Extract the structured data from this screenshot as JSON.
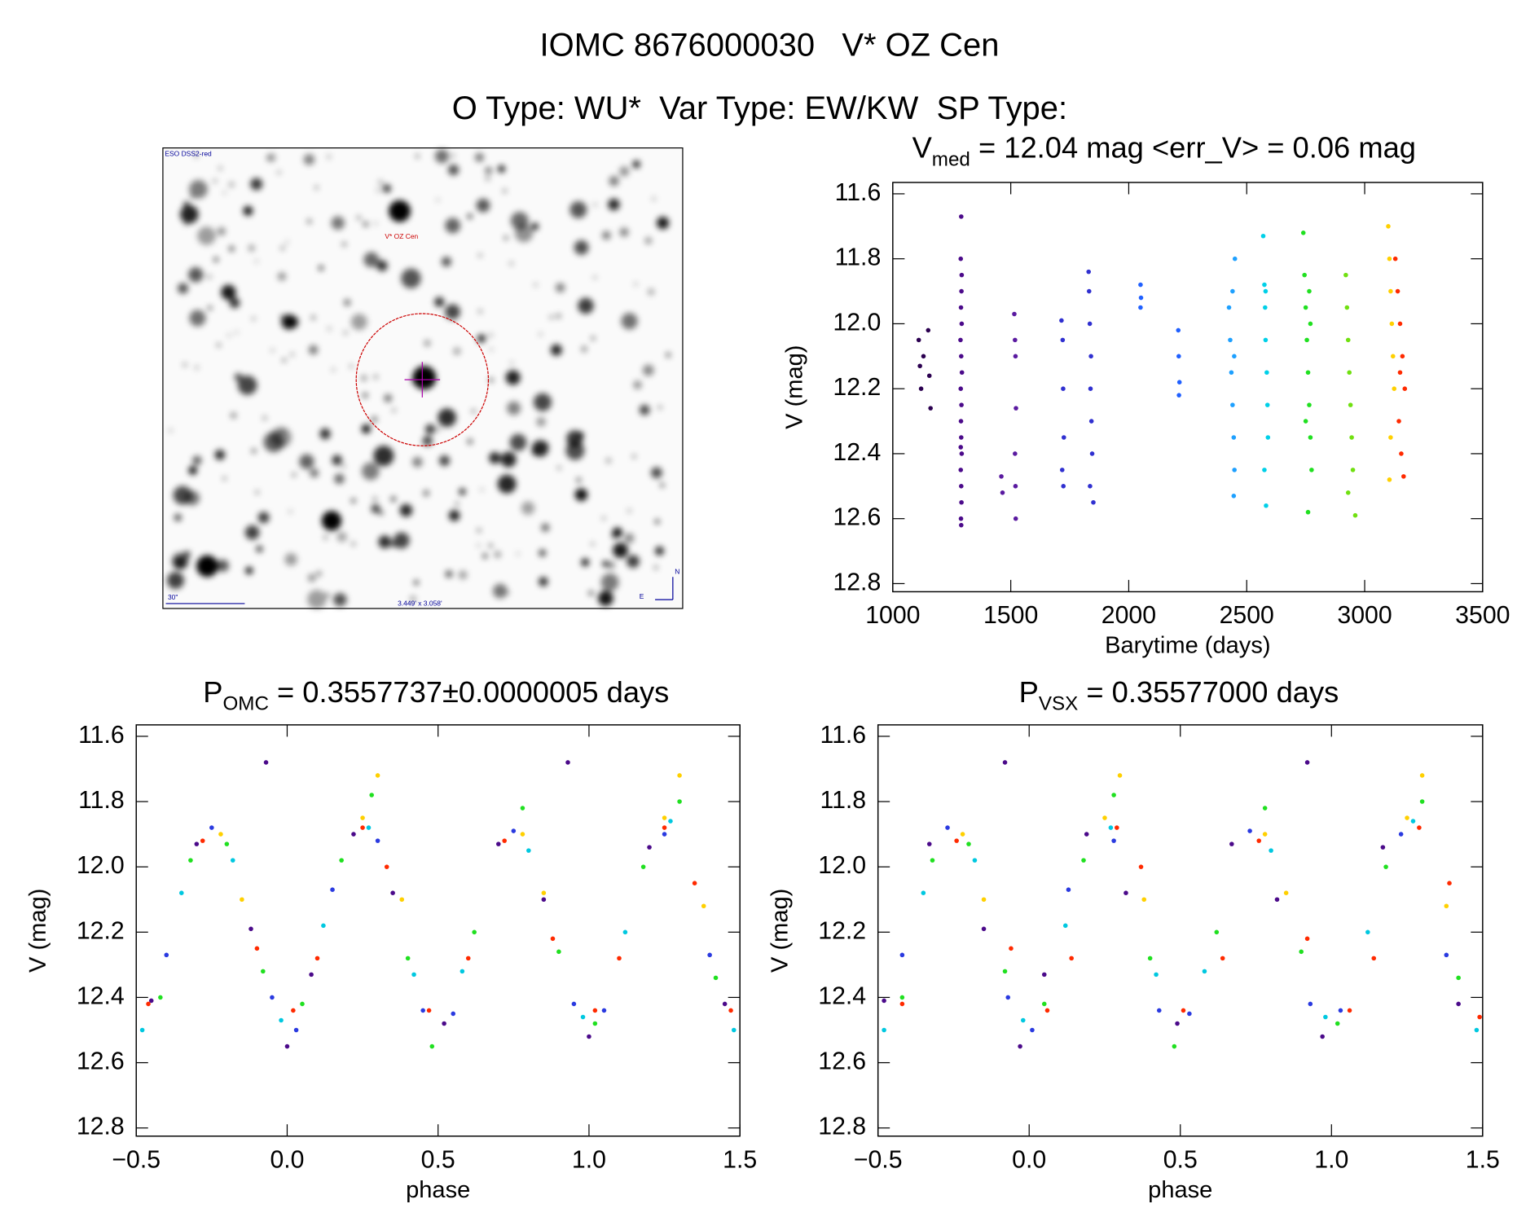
{
  "header": {
    "line1": "IOMC 8676000030   V* OZ Cen",
    "line2": "O Type: WU*  Var Type: EW/KW  SP Type:"
  },
  "finder": {
    "survey": "ESO DSS2-red",
    "target": "V* OZ Cen",
    "scale": "30\"",
    "size": "3.449' x 3.058'",
    "north": "N",
    "east": "E"
  },
  "chart_data": [
    {
      "type": "scatter",
      "title": [
        "V",
        "med",
        " = 12.04 mag <err_V> = 0.06 mag"
      ],
      "xlabel": "Barytime (days)",
      "ylabel": "V (mag)",
      "xlim": [
        1000,
        3500
      ],
      "ylim": [
        12.825,
        11.565
      ],
      "xticks": [
        1000,
        1500,
        2000,
        2500,
        3000,
        3500
      ],
      "yticks": [
        11.6,
        11.8,
        {
          "value": 12,
          "label": "12.0"
        },
        12.2,
        12.4,
        12.6,
        12.8
      ],
      "series": [
        {
          "color": "#2b0050",
          "x": [
            1110,
            1115,
            1120,
            1130,
            1150,
            1155,
            1160
          ],
          "values": [
            12.05,
            12.13,
            12.2,
            12.1,
            12.02,
            12.16,
            12.26
          ]
        },
        {
          "color": "#4b0a8a",
          "x": [
            1290,
            1288,
            1291,
            1289,
            1292,
            1287,
            1290,
            1293,
            1288,
            1291,
            1289,
            1290,
            1292,
            1288,
            1290,
            1291,
            1289,
            1290,
            1292,
            1288
          ],
          "values": [
            11.67,
            11.8,
            11.9,
            11.95,
            12.0,
            12.05,
            12.1,
            12.15,
            12.2,
            12.25,
            12.3,
            12.35,
            12.4,
            12.45,
            12.5,
            12.55,
            12.6,
            12.62,
            11.85,
            12.38
          ]
        },
        {
          "color": "#5a1aa0",
          "x": [
            1460,
            1465,
            1515,
            1518,
            1520,
            1522,
            1518,
            1520,
            1521
          ],
          "values": [
            12.47,
            12.52,
            11.97,
            12.05,
            12.1,
            12.26,
            12.4,
            12.5,
            12.6
          ]
        },
        {
          "color": "#3030d0",
          "x": [
            1715,
            1720,
            1722,
            1725,
            1718,
            1723,
            1830,
            1832,
            1835,
            1840,
            1838,
            1842,
            1845,
            1850,
            1836
          ],
          "values": [
            11.99,
            12.05,
            12.2,
            12.35,
            12.45,
            12.5,
            11.84,
            11.9,
            12.0,
            12.1,
            12.2,
            12.3,
            12.4,
            12.55,
            12.5
          ]
        },
        {
          "color": "#2060ff",
          "x": [
            2050,
            2052,
            2050,
            2210,
            2212,
            2215,
            2213
          ],
          "values": [
            11.88,
            11.92,
            11.95,
            12.02,
            12.1,
            12.18,
            12.22
          ]
        },
        {
          "color": "#1ea0ff",
          "x": [
            2425,
            2430,
            2435,
            2440,
            2445,
            2448,
            2450,
            2440,
            2445,
            2447
          ],
          "values": [
            11.95,
            12.05,
            12.15,
            12.25,
            12.35,
            12.45,
            11.8,
            11.9,
            12.53,
            12.1
          ]
        },
        {
          "color": "#00d0e8",
          "x": [
            2570,
            2575,
            2578,
            2580,
            2585,
            2588,
            2590,
            2575,
            2582,
            2580
          ],
          "values": [
            11.73,
            11.88,
            11.95,
            12.05,
            12.15,
            12.25,
            12.35,
            12.45,
            12.56,
            11.9
          ]
        },
        {
          "color": "#20e020",
          "x": [
            2740,
            2745,
            2750,
            2755,
            2760,
            2765,
            2770,
            2775,
            2760,
            2750,
            2770,
            2765
          ],
          "values": [
            11.72,
            11.85,
            11.95,
            12.05,
            12.15,
            12.25,
            12.35,
            12.45,
            12.58,
            12.3,
            12.0,
            11.9
          ]
        },
        {
          "color": "#70e010",
          "x": [
            2920,
            2925,
            2930,
            2935,
            2940,
            2945,
            2950,
            2960,
            2930
          ],
          "values": [
            11.85,
            11.95,
            12.05,
            12.15,
            12.25,
            12.35,
            12.45,
            12.59,
            12.52
          ]
        },
        {
          "color": "#ffd000",
          "x": [
            3100,
            3105,
            3110,
            3115,
            3120,
            3125,
            3110,
            3105
          ],
          "values": [
            11.7,
            11.8,
            11.9,
            12.0,
            12.1,
            12.2,
            12.35,
            12.48
          ]
        },
        {
          "color": "#ff2a00",
          "x": [
            3130,
            3140,
            3150,
            3160,
            3170,
            3145,
            3155,
            3165,
            3150
          ],
          "values": [
            11.8,
            11.9,
            12.0,
            12.1,
            12.2,
            12.3,
            12.4,
            12.47,
            12.15
          ]
        }
      ]
    },
    {
      "type": "scatter",
      "title": [
        "P",
        "OMC",
        " = 0.3557737±0.0000005 days"
      ],
      "xlabel": "phase",
      "ylabel": "V (mag)",
      "xlim": [
        -0.5,
        1.5
      ],
      "ylim": [
        12.825,
        11.565
      ],
      "xticks": [
        {
          "value": -0.5,
          "label": "−0.5"
        },
        {
          "value": 0,
          "label": "0.0"
        },
        0.5,
        {
          "value": 1,
          "label": "1.0"
        },
        1.5
      ],
      "yticks": [
        11.6,
        11.8,
        {
          "value": 12,
          "label": "12.0"
        },
        12.2,
        12.4,
        12.6,
        12.8
      ],
      "series": [
        {
          "color": "#4b0a8a",
          "x": [
            -0.45,
            -0.3,
            -0.12,
            0.0,
            0.08,
            0.22,
            0.35,
            0.52,
            0.7,
            0.85,
            1.0,
            1.2,
            1.45,
            -0.07,
            0.93
          ],
          "values": [
            12.41,
            11.93,
            12.19,
            12.55,
            12.33,
            11.9,
            12.08,
            12.48,
            11.93,
            12.1,
            12.52,
            11.94,
            12.42,
            11.68,
            11.68
          ]
        },
        {
          "color": "#2a3ae0",
          "x": [
            -0.4,
            -0.25,
            -0.05,
            0.03,
            0.15,
            0.3,
            0.45,
            0.55,
            0.75,
            0.95,
            1.05,
            1.25,
            1.4
          ],
          "values": [
            12.27,
            11.88,
            12.4,
            12.5,
            12.07,
            11.92,
            12.44,
            12.45,
            11.89,
            12.42,
            12.44,
            11.9,
            12.27
          ]
        },
        {
          "color": "#00c8e0",
          "x": [
            -0.48,
            -0.35,
            -0.18,
            -0.02,
            0.12,
            0.27,
            0.42,
            0.58,
            0.8,
            0.98,
            1.12,
            1.27,
            1.48
          ],
          "values": [
            12.5,
            12.08,
            11.98,
            12.47,
            12.18,
            11.88,
            12.33,
            12.32,
            11.95,
            12.46,
            12.2,
            11.86,
            12.5
          ]
        },
        {
          "color": "#20e020",
          "x": [
            -0.42,
            -0.32,
            -0.2,
            -0.08,
            0.05,
            0.18,
            0.28,
            0.4,
            0.48,
            0.62,
            0.78,
            0.9,
            1.02,
            1.18,
            1.3,
            1.42
          ],
          "values": [
            12.4,
            11.98,
            11.93,
            12.32,
            12.42,
            11.98,
            11.78,
            12.28,
            12.55,
            12.2,
            11.82,
            12.26,
            12.48,
            12.0,
            11.8,
            12.34
          ]
        },
        {
          "color": "#ffd000",
          "x": [
            -0.22,
            -0.15,
            0.25,
            0.3,
            0.38,
            0.78,
            0.85,
            1.25,
            1.3,
            1.38
          ],
          "values": [
            11.9,
            12.1,
            11.85,
            11.72,
            12.1,
            11.9,
            12.08,
            11.85,
            11.72,
            12.12
          ]
        },
        {
          "color": "#ff2a00",
          "x": [
            -0.46,
            -0.28,
            -0.1,
            0.02,
            0.1,
            0.25,
            0.33,
            0.47,
            0.6,
            0.72,
            0.88,
            1.02,
            1.1,
            1.25,
            1.35,
            1.47
          ],
          "values": [
            12.42,
            11.92,
            12.25,
            12.44,
            12.28,
            11.88,
            12.0,
            12.44,
            12.28,
            11.92,
            12.22,
            12.44,
            12.28,
            11.88,
            12.05,
            12.44
          ]
        }
      ]
    },
    {
      "type": "scatter",
      "title": [
        "P",
        "VSX",
        " = 0.35577000 days"
      ],
      "xlabel": "phase",
      "ylabel": "V (mag)",
      "xlim": [
        -0.5,
        1.5
      ],
      "ylim": [
        12.825,
        11.565
      ],
      "xticks": [
        {
          "value": -0.5,
          "label": "−0.5"
        },
        {
          "value": 0,
          "label": "0.0"
        },
        0.5,
        {
          "value": 1,
          "label": "1.0"
        },
        1.5
      ],
      "yticks": [
        11.6,
        11.8,
        {
          "value": 12,
          "label": "12.0"
        },
        12.2,
        12.4,
        12.6,
        12.8
      ],
      "series": [
        {
          "color": "#4b0a8a",
          "x": [
            -0.48,
            -0.33,
            -0.15,
            -0.03,
            0.05,
            0.19,
            0.32,
            0.49,
            0.67,
            0.82,
            0.97,
            1.17,
            1.42,
            -0.08,
            0.92
          ],
          "values": [
            12.41,
            11.93,
            12.19,
            12.55,
            12.33,
            11.9,
            12.08,
            12.48,
            11.93,
            12.1,
            12.52,
            11.94,
            12.42,
            11.68,
            11.68
          ]
        },
        {
          "color": "#2a3ae0",
          "x": [
            -0.42,
            -0.27,
            -0.07,
            0.01,
            0.13,
            0.28,
            0.43,
            0.53,
            0.73,
            0.93,
            1.03,
            1.23,
            1.38
          ],
          "values": [
            12.27,
            11.88,
            12.4,
            12.5,
            12.07,
            11.92,
            12.44,
            12.45,
            11.89,
            12.42,
            12.44,
            11.9,
            12.27
          ]
        },
        {
          "color": "#00c8e0",
          "x": [
            -0.48,
            -0.35,
            -0.18,
            -0.02,
            0.12,
            0.27,
            0.42,
            0.58,
            0.8,
            0.98,
            1.12,
            1.27,
            1.48
          ],
          "values": [
            12.5,
            12.08,
            11.98,
            12.47,
            12.18,
            11.88,
            12.33,
            12.32,
            11.95,
            12.46,
            12.2,
            11.86,
            12.5
          ]
        },
        {
          "color": "#20e020",
          "x": [
            -0.42,
            -0.32,
            -0.2,
            -0.08,
            0.05,
            0.18,
            0.28,
            0.4,
            0.48,
            0.62,
            0.78,
            0.9,
            1.02,
            1.18,
            1.3,
            1.42
          ],
          "values": [
            12.4,
            11.98,
            11.93,
            12.32,
            12.42,
            11.98,
            11.78,
            12.28,
            12.55,
            12.2,
            11.82,
            12.26,
            12.48,
            12.0,
            11.8,
            12.34
          ]
        },
        {
          "color": "#ffd000",
          "x": [
            -0.22,
            -0.15,
            0.25,
            0.3,
            0.38,
            0.78,
            0.85,
            1.25,
            1.3,
            1.38
          ],
          "values": [
            11.9,
            12.1,
            11.85,
            11.72,
            12.1,
            11.9,
            12.08,
            11.85,
            11.72,
            12.12
          ]
        },
        {
          "color": "#ff2a00",
          "x": [
            -0.42,
            -0.24,
            -0.06,
            0.06,
            0.14,
            0.29,
            0.37,
            0.51,
            0.64,
            0.76,
            0.92,
            1.06,
            1.14,
            1.29,
            1.39,
            1.49
          ],
          "values": [
            12.42,
            11.92,
            12.25,
            12.44,
            12.28,
            11.88,
            12.0,
            12.44,
            12.28,
            11.92,
            12.22,
            12.44,
            12.28,
            11.88,
            12.05,
            12.46
          ]
        }
      ]
    }
  ]
}
